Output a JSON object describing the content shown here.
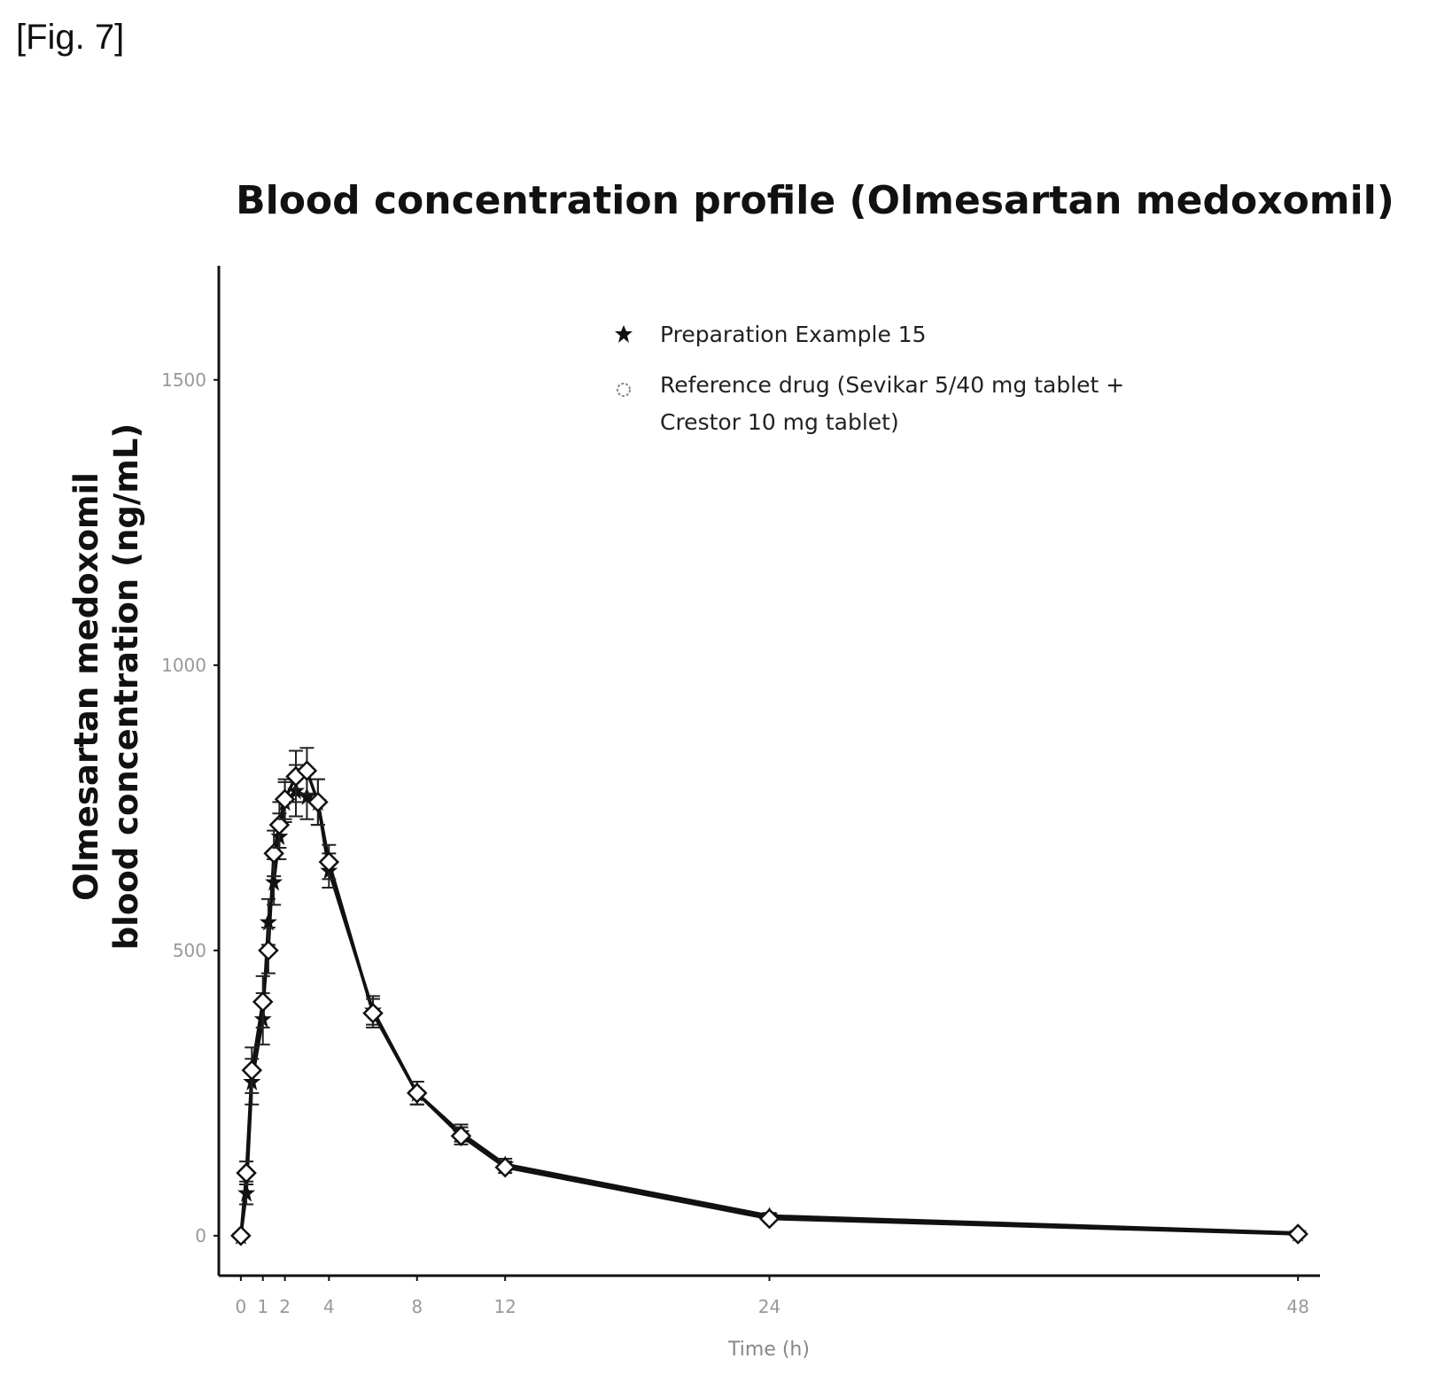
{
  "figure_label": "[Fig. 7]",
  "chart_data": {
    "type": "line",
    "title": "Blood concentration profile (Olmesartan medoxomil)",
    "ylabel": [
      "Olmesartan medoxomil",
      "blood concentration (ng/mL)"
    ],
    "xlabel": "Time (h)",
    "xlim": [
      -1,
      49
    ],
    "ylim": [
      -70,
      1700
    ],
    "xticks": [
      0,
      1,
      2,
      4,
      8,
      12,
      24,
      48
    ],
    "xtick_labels": [
      "0",
      "1",
      "2",
      "4",
      "8",
      "12",
      "24",
      "48"
    ],
    "yticks": [
      0,
      500,
      1000,
      1500
    ],
    "ytick_labels": [
      "0",
      "500",
      "1000",
      "1500"
    ],
    "legend_position": "top-right",
    "series": [
      {
        "name": "Preparation Example 15",
        "marker": "filled-star",
        "color": "#111111",
        "x": [
          0,
          0.25,
          0.5,
          1,
          1.25,
          1.5,
          1.75,
          2,
          2.5,
          3,
          3.5,
          4,
          6,
          8,
          10,
          12,
          24,
          48
        ],
        "y": [
          0,
          75,
          270,
          380,
          550,
          620,
          700,
          760,
          780,
          770,
          760,
          640,
          395,
          250,
          180,
          125,
          35,
          5
        ],
        "error": [
          0,
          20,
          40,
          45,
          40,
          40,
          40,
          35,
          45,
          40,
          40,
          30,
          25,
          20,
          15,
          10,
          5,
          3
        ]
      },
      {
        "name": "Reference drug (Sevikar 5/40 mg tablet + Crestor 10 mg tablet)",
        "legend_lines": [
          "Reference drug (Sevikar 5/40 mg tablet +",
          "Crestor 10 mg tablet)"
        ],
        "marker": "open-diamond",
        "color": "#111111",
        "x": [
          0,
          0.25,
          0.5,
          1,
          1.25,
          1.5,
          1.75,
          2,
          2.5,
          3,
          3.5,
          4,
          6,
          8,
          10,
          12,
          24,
          48
        ],
        "y": [
          0,
          110,
          290,
          410,
          500,
          670,
          720,
          765,
          805,
          815,
          760,
          655,
          390,
          250,
          175,
          120,
          30,
          3
        ],
        "error": [
          0,
          20,
          40,
          45,
          40,
          40,
          40,
          35,
          45,
          40,
          40,
          30,
          25,
          20,
          15,
          10,
          5,
          3
        ]
      }
    ]
  }
}
